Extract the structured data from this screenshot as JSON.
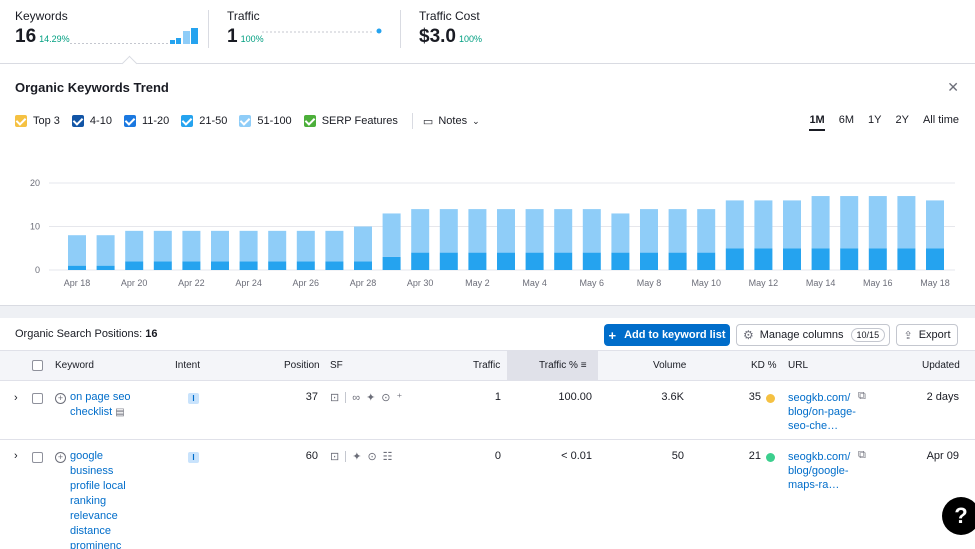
{
  "metrics": [
    {
      "label": "Keywords",
      "value": "16",
      "change": "14.29%"
    },
    {
      "label": "Traffic",
      "value": "1",
      "change": "100%"
    },
    {
      "label": "Traffic Cost",
      "value": "$3.0",
      "change": "100%"
    }
  ],
  "trend": {
    "title": "Organic Keywords Trend",
    "close_icon": "close-icon",
    "legend": [
      {
        "label": "Top 3",
        "color": "#f5c142"
      },
      {
        "label": "4-10",
        "color": "#1255a6"
      },
      {
        "label": "11-20",
        "color": "#1a78e0"
      },
      {
        "label": "21-50",
        "color": "#25a3ef"
      },
      {
        "label": "51-100",
        "color": "#8fcdf8"
      },
      {
        "label": "SERP Features",
        "color": "#4caf3a"
      }
    ],
    "notes_label": "Notes",
    "periods": [
      "1M",
      "6M",
      "1Y",
      "2Y",
      "All time"
    ],
    "active_period": "1M"
  },
  "chart_data": {
    "type": "bar",
    "stacked": true,
    "categories": [
      "Apr 18",
      "Apr 19",
      "Apr 20",
      "Apr 21",
      "Apr 22",
      "Apr 23",
      "Apr 24",
      "Apr 25",
      "Apr 26",
      "Apr 27",
      "Apr 28",
      "Apr 29",
      "Apr 30",
      "May 1",
      "May 2",
      "May 3",
      "May 4",
      "May 5",
      "May 6",
      "May 7",
      "May 8",
      "May 9",
      "May 10",
      "May 11",
      "May 12",
      "May 13",
      "May 14",
      "May 15",
      "May 16",
      "May 17",
      "May 18"
    ],
    "tick_labels": [
      "Apr 18",
      "Apr 20",
      "Apr 22",
      "Apr 24",
      "Apr 26",
      "Apr 28",
      "Apr 30",
      "May 2",
      "May 4",
      "May 6",
      "May 8",
      "May 10",
      "May 12",
      "May 14",
      "May 16",
      "May 18"
    ],
    "series": [
      {
        "name": "21-50",
        "color": "#25a3ef",
        "values": [
          1,
          1,
          2,
          2,
          2,
          2,
          2,
          2,
          2,
          2,
          2,
          3,
          4,
          4,
          4,
          4,
          4,
          4,
          4,
          4,
          4,
          4,
          4,
          5,
          5,
          5,
          5,
          5,
          5,
          5,
          5
        ]
      },
      {
        "name": "51-100",
        "color": "#8fcdf8",
        "values": [
          7,
          7,
          7,
          7,
          7,
          7,
          7,
          7,
          7,
          7,
          8,
          10,
          10,
          10,
          10,
          10,
          10,
          10,
          10,
          9,
          10,
          10,
          10,
          11,
          11,
          11,
          12,
          12,
          12,
          12,
          11
        ]
      }
    ],
    "ylim": [
      0,
      20
    ],
    "yticks": [
      0,
      10,
      20
    ],
    "grid": true
  },
  "positions": {
    "title": "Organic Search Positions:",
    "count": "16",
    "add_button": "Add to keyword list",
    "manage_button": "Manage columns",
    "manage_count": "10/15",
    "export_button": "Export",
    "columns": {
      "keyword": "Keyword",
      "intent": "Intent",
      "position": "Position",
      "sf": "SF",
      "traffic": "Traffic",
      "traffic_pct": "Traffic %",
      "volume": "Volume",
      "kd": "KD %",
      "url": "URL",
      "updated": "Updated"
    },
    "rows": [
      {
        "keyword": "on page seo checklist",
        "intent": "I",
        "position": "37",
        "traffic": "1",
        "traffic_pct": "100.00",
        "volume": "3.6K",
        "kd": "35",
        "kd_color": "#f5c142",
        "url": "seogkb.com/blog/on-page-seo-che…",
        "updated": "2 days"
      },
      {
        "keyword": "google business profile local ranking relevance distance prominenc",
        "intent": "I",
        "position": "60",
        "traffic": "0",
        "traffic_pct": "< 0.01",
        "volume": "50",
        "kd": "21",
        "kd_color": "#3ccf8e",
        "url": "seogkb.com/blog/google-maps-ra…",
        "updated": "Apr 09"
      }
    ]
  },
  "help_label": "?"
}
